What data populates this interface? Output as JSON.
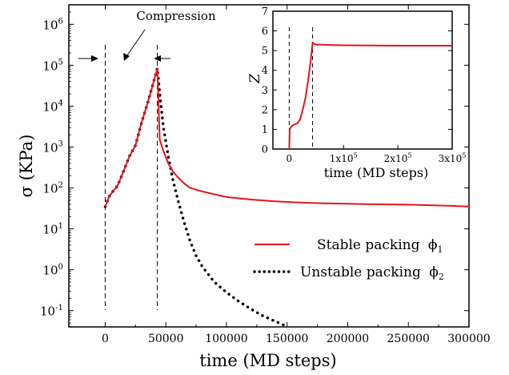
{
  "chart_data": [
    {
      "type": "line",
      "title": "",
      "xlabel": "time (MD steps)",
      "ylabel": "σ (KPa)",
      "xlim": [
        -30000,
        300000
      ],
      "ylim": [
        0.04,
        3000000
      ],
      "yscale": "log",
      "x_ticks": [
        0,
        50000,
        100000,
        150000,
        200000,
        250000,
        300000
      ],
      "x_tick_labels": [
        "0",
        "50000",
        "100000",
        "150000",
        "200000",
        "250000",
        "300000"
      ],
      "y_ticks": [
        0.1,
        1,
        10,
        100,
        1000,
        10000,
        100000,
        1000000
      ],
      "y_tick_labels": [
        {
          "base": "10",
          "exp": "-1"
        },
        {
          "base": "10",
          "exp": "0"
        },
        {
          "base": "10",
          "exp": "1"
        },
        {
          "base": "10",
          "exp": "2"
        },
        {
          "base": "10",
          "exp": "3"
        },
        {
          "base": "10",
          "exp": "4"
        },
        {
          "base": "10",
          "exp": "5"
        },
        {
          "base": "10",
          "exp": "6"
        }
      ],
      "grid": false,
      "legend_position": "lower-right",
      "vertical_markers": [
        0,
        43000
      ],
      "annotation": "Compression",
      "series": [
        {
          "name": "Stable packing",
          "subscript": "1",
          "symbol": "ϕ",
          "color": "#e8141c",
          "style": "solid",
          "x": [
            0,
            3000,
            6000,
            10000,
            15000,
            20000,
            25000,
            30000,
            35000,
            40000,
            43000,
            45000,
            48000,
            52000,
            56000,
            60000,
            65000,
            70000,
            80000,
            90000,
            100000,
            120000,
            140000,
            160000,
            180000,
            200000,
            220000,
            250000,
            280000,
            300000
          ],
          "y": [
            35,
            60,
            80,
            110,
            250,
            600,
            1100,
            4000,
            12000,
            40000,
            85000,
            1500,
            800,
            400,
            250,
            180,
            130,
            100,
            82,
            70,
            60,
            52,
            47,
            44,
            42,
            41,
            40,
            39,
            37,
            35
          ]
        },
        {
          "name": "Unstable packing",
          "subscript": "2",
          "symbol": "ϕ",
          "color": "#000000",
          "style": "dotted",
          "x": [
            0,
            3000,
            6000,
            10000,
            15000,
            20000,
            25000,
            30000,
            35000,
            40000,
            43000,
            45000,
            48000,
            52000,
            56000,
            60000,
            65000,
            70000,
            75000,
            80000,
            90000,
            100000,
            110000,
            120000,
            130000,
            140000,
            147000
          ],
          "y": [
            35,
            60,
            80,
            110,
            250,
            600,
            1100,
            4000,
            12000,
            40000,
            85000,
            20000,
            3000,
            600,
            150,
            50,
            15,
            5,
            2.2,
            1.2,
            0.5,
            0.28,
            0.17,
            0.11,
            0.075,
            0.055,
            0.045
          ]
        }
      ]
    },
    {
      "type": "line",
      "title": "",
      "xlabel": "time (MD steps)",
      "ylabel": "Z",
      "xlim": [
        -30000,
        300000
      ],
      "ylim": [
        0,
        7
      ],
      "x_ticks": [
        0,
        100000,
        200000,
        300000
      ],
      "x_tick_labels": [
        {
          "base": "0",
          "exp": ""
        },
        {
          "base": "1x10",
          "exp": "5"
        },
        {
          "base": "2x10",
          "exp": "5"
        },
        {
          "base": "3x10",
          "exp": "5"
        }
      ],
      "y_ticks": [
        0,
        1,
        2,
        3,
        4,
        5,
        6,
        7
      ],
      "y_tick_labels": [
        "0",
        "1",
        "2",
        "3",
        "4",
        "5",
        "6",
        "7"
      ],
      "grid": false,
      "vertical_markers": [
        0,
        43000
      ],
      "series": [
        {
          "color": "#e8141c",
          "style": "solid",
          "x": [
            0,
            1000,
            3000,
            6000,
            10000,
            15000,
            20000,
            25000,
            30000,
            35000,
            40000,
            43000,
            46000,
            50000,
            60000,
            80000,
            100000,
            150000,
            200000,
            250000,
            300000
          ],
          "y": [
            0,
            1.0,
            1.1,
            1.2,
            1.25,
            1.3,
            1.5,
            2.0,
            2.6,
            3.5,
            4.6,
            5.4,
            5.35,
            5.3,
            5.3,
            5.28,
            5.27,
            5.26,
            5.25,
            5.25,
            5.25
          ]
        }
      ]
    }
  ]
}
